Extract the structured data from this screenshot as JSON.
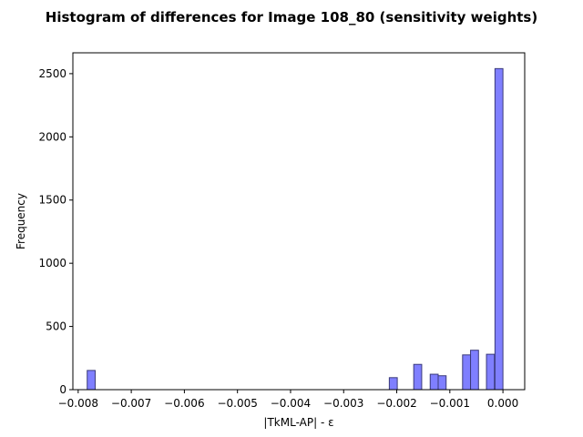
{
  "chart_data": {
    "type": "bar",
    "title": "Histogram of differences for Image 108_80 (sensitivity weights)",
    "xlabel": "|TkML-AP| - ε",
    "ylabel": "Frequency",
    "xlim": [
      -0.0081,
      0.00041
    ],
    "ylim": [
      0,
      2665
    ],
    "x_ticks": [
      {
        "value": -0.008,
        "label": "−0.008"
      },
      {
        "value": -0.007,
        "label": "−0.007"
      },
      {
        "value": -0.006,
        "label": "−0.006"
      },
      {
        "value": -0.005,
        "label": "−0.005"
      },
      {
        "value": -0.004,
        "label": "−0.004"
      },
      {
        "value": -0.003,
        "label": "−0.003"
      },
      {
        "value": -0.002,
        "label": "−0.002"
      },
      {
        "value": -0.001,
        "label": "−0.001"
      },
      {
        "value": 0.0,
        "label": "0.000"
      }
    ],
    "y_ticks": [
      {
        "value": 0,
        "label": "0"
      },
      {
        "value": 500,
        "label": "500"
      },
      {
        "value": 1000,
        "label": "1000"
      },
      {
        "value": 1500,
        "label": "1500"
      },
      {
        "value": 2000,
        "label": "2000"
      },
      {
        "value": 2500,
        "label": "2500"
      }
    ],
    "bins": [
      {
        "start": -0.00783,
        "end": -0.00768,
        "count": 152
      },
      {
        "start": -0.00214,
        "end": -0.00199,
        "count": 95
      },
      {
        "start": -0.00168,
        "end": -0.00153,
        "count": 200
      },
      {
        "start": -0.00137,
        "end": -0.00122,
        "count": 122
      },
      {
        "start": -0.00122,
        "end": -0.00107,
        "count": 110
      },
      {
        "start": -0.00076,
        "end": -0.00061,
        "count": 275
      },
      {
        "start": -0.00061,
        "end": -0.00046,
        "count": 312
      },
      {
        "start": -0.00031,
        "end": -0.00016,
        "count": 280
      },
      {
        "start": -0.00015,
        "end": 0.0,
        "count": 2540
      }
    ],
    "bar_fill": "#7f7fff",
    "bar_edge": "#3a3a7a",
    "grid": false,
    "legend": "none"
  }
}
